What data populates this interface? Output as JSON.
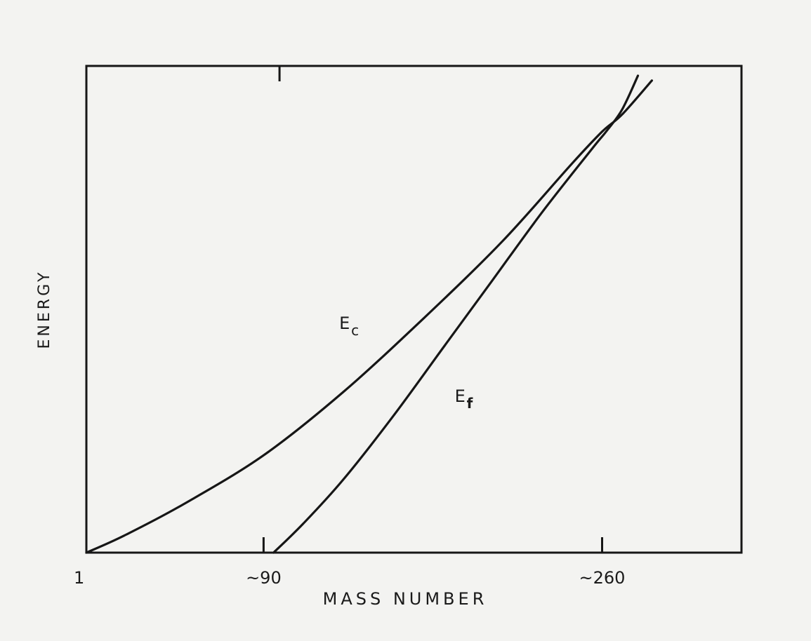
{
  "chart_data": {
    "type": "line",
    "xlabel": "MASS NUMBER",
    "ylabel": "ENERGY",
    "x_ticks": [
      {
        "value": 1,
        "label": "1"
      },
      {
        "value": 90,
        "label": "~90"
      },
      {
        "value": 260,
        "label": "~260"
      }
    ],
    "top_tick_value": 98,
    "xlim": [
      1,
      330
    ],
    "ylim": [
      0,
      100
    ],
    "grid": false,
    "series": [
      {
        "name": "Ec",
        "label_main": "E",
        "label_sub": "c",
        "label_at": [
          128,
          46
        ],
        "points": [
          [
            1,
            0
          ],
          [
            20,
            3.5
          ],
          [
            50,
            10
          ],
          [
            90,
            20
          ],
          [
            130,
            33
          ],
          [
            170,
            48
          ],
          [
            210,
            64
          ],
          [
            245,
            80
          ],
          [
            260,
            86.5
          ],
          [
            270,
            90
          ],
          [
            285,
            97
          ]
        ]
      },
      {
        "name": "Ef",
        "label_main": "E",
        "label_sub": "f",
        "label_at": [
          186,
          31
        ],
        "points": [
          [
            95,
            0
          ],
          [
            110,
            6
          ],
          [
            130,
            15
          ],
          [
            155,
            28
          ],
          [
            180,
            42
          ],
          [
            205,
            56
          ],
          [
            230,
            70
          ],
          [
            255,
            83
          ],
          [
            262,
            86.5
          ],
          [
            270,
            91
          ],
          [
            278,
            98
          ]
        ]
      }
    ]
  }
}
